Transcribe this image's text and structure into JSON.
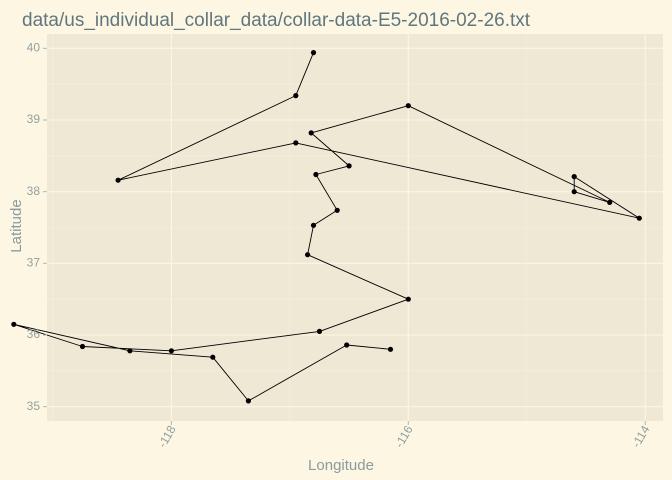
{
  "colors": {
    "page_background": "#fdf6e3",
    "panel_background": "#eee8d5",
    "grid_major": "#fdf6e3",
    "grid_minor": "#f6f0de",
    "line": "#000000",
    "point": "#000000"
  },
  "chart_data": {
    "type": "line",
    "title": "data/us_individual_collar_data/collar-data-E5-2016-02-26.txt",
    "xlabel": "Longitude",
    "ylabel": "Latitude",
    "xlim": [
      -119.05,
      -113.85
    ],
    "ylim": [
      34.8,
      40.2
    ],
    "x_ticks": [
      -118,
      -116,
      -114
    ],
    "y_ticks": [
      35,
      36,
      37,
      38,
      39,
      40
    ],
    "x_tick_labels": [
      "-118",
      "-116",
      "-114"
    ],
    "y_tick_labels": [
      "35",
      "36",
      "37",
      "38",
      "39",
      "40"
    ],
    "grid": true,
    "legend": "none",
    "series": [
      {
        "points": [
          {
            "x": -116.8,
            "y": 39.94
          },
          {
            "x": -116.95,
            "y": 39.34
          },
          {
            "x": -118.45,
            "y": 38.16
          },
          {
            "x": -116.95,
            "y": 38.68
          },
          {
            "x": -114.05,
            "y": 37.63
          },
          {
            "x": -114.6,
            "y": 38.21
          },
          {
            "x": -114.6,
            "y": 38.0
          },
          {
            "x": -114.3,
            "y": 37.85
          },
          {
            "x": -116.0,
            "y": 39.2
          },
          {
            "x": -116.82,
            "y": 38.82
          },
          {
            "x": -116.5,
            "y": 38.36
          },
          {
            "x": -116.78,
            "y": 38.24
          },
          {
            "x": -116.6,
            "y": 37.74
          },
          {
            "x": -116.8,
            "y": 37.53
          },
          {
            "x": -116.85,
            "y": 37.12
          },
          {
            "x": -116.0,
            "y": 36.5
          },
          {
            "x": -116.75,
            "y": 36.05
          },
          {
            "x": -118.0,
            "y": 35.78
          },
          {
            "x": -118.75,
            "y": 35.84
          },
          {
            "x": -119.33,
            "y": 36.15
          },
          {
            "x": -118.35,
            "y": 35.78
          },
          {
            "x": -117.65,
            "y": 35.69
          },
          {
            "x": -117.35,
            "y": 35.08
          },
          {
            "x": -116.52,
            "y": 35.86
          },
          {
            "x": -116.15,
            "y": 35.8
          }
        ]
      }
    ]
  }
}
